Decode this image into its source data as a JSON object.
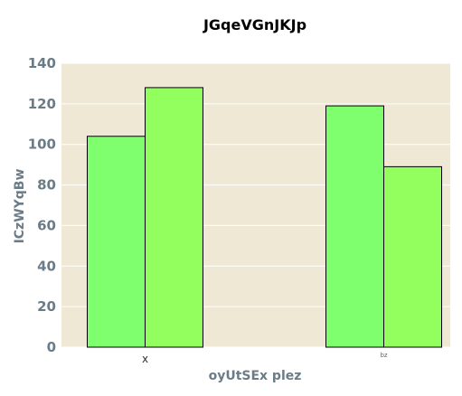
{
  "chart_data": {
    "type": "bar",
    "title": "JGqeVGnJKJp",
    "xlabel": "oyUtSEx plez",
    "ylabel": "ICzWYqBw",
    "categories": [
      "x",
      "bz"
    ],
    "series": [
      {
        "values": [
          104,
          119
        ],
        "color": "#80ff6e"
      },
      {
        "values": [
          128,
          89
        ],
        "color": "#93ff5e"
      }
    ],
    "ylim": [
      0,
      140
    ],
    "yticks": [
      "0",
      "20",
      "40",
      "60",
      "80",
      "100",
      "120",
      "140"
    ],
    "grid": true,
    "legend": false,
    "colors": {
      "plot_background": "#efe8d4",
      "gridline": "#ffffff",
      "bar_edge": "#000000",
      "tick_text": "#6b7c87"
    }
  }
}
